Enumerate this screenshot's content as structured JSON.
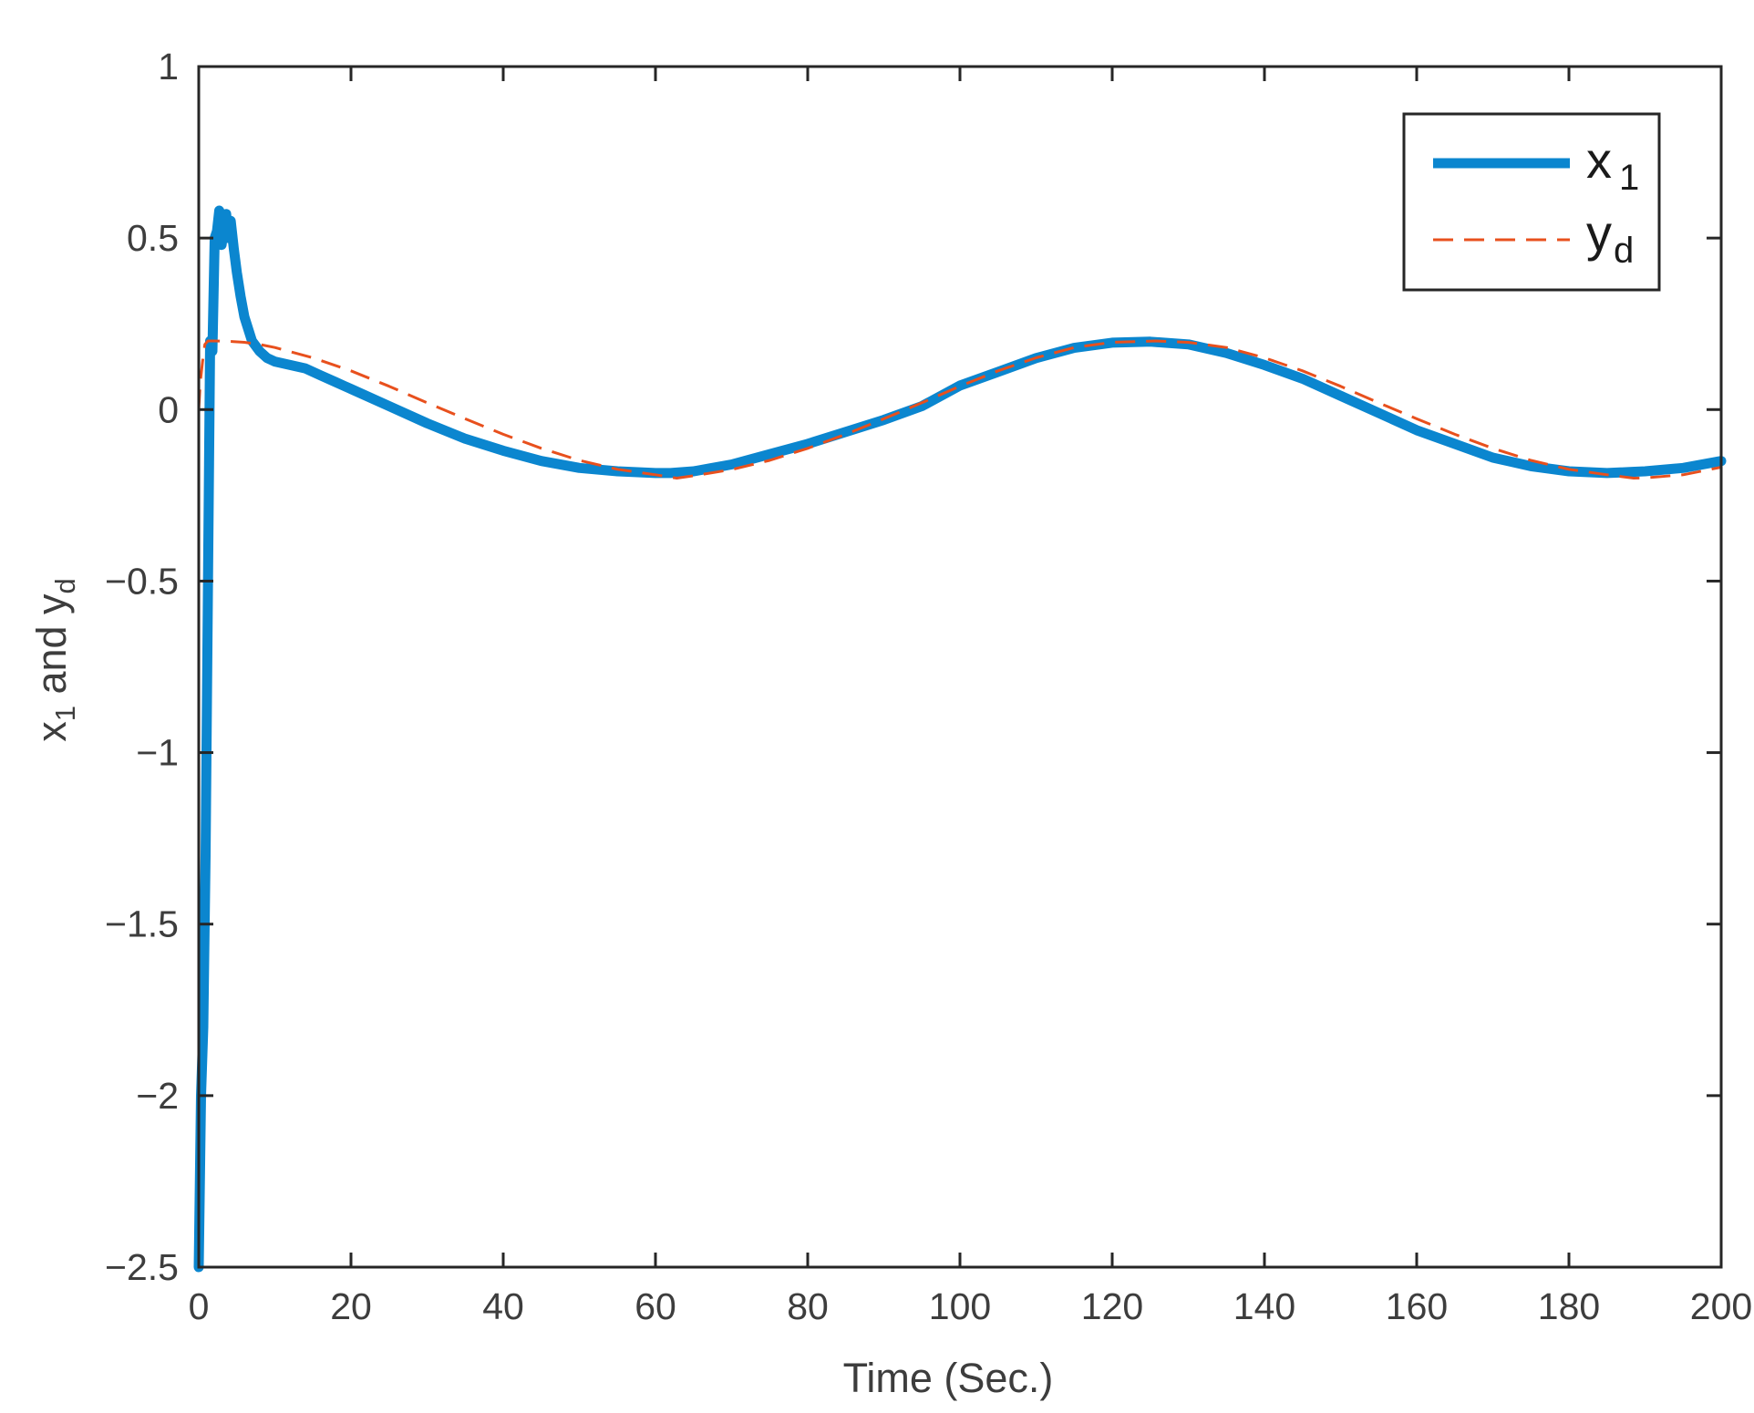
{
  "chart_data": {
    "type": "line",
    "title": "",
    "xlabel": "Time (Sec.)",
    "ylabel": {
      "main_1": "x",
      "sub_1": "1",
      "main_2": " and y",
      "sub_2": "d"
    },
    "xlim": [
      0,
      200
    ],
    "ylim": [
      -2.5,
      1
    ],
    "xticks": [
      0,
      20,
      40,
      60,
      80,
      100,
      120,
      140,
      160,
      180,
      200
    ],
    "yticks": [
      -2.5,
      -2,
      -1.5,
      -1,
      -0.5,
      0,
      0.5,
      1
    ],
    "xtick_labels": [
      "0",
      "20",
      "40",
      "60",
      "80",
      "100",
      "120",
      "140",
      "160",
      "180",
      "200"
    ],
    "ytick_labels": [
      "−2.5",
      "−2",
      "−1.5",
      "−1",
      "−0.5",
      "0",
      "0.5",
      "1"
    ],
    "grid": false,
    "box": true,
    "legend_position": "top-right",
    "series": [
      {
        "name": "x",
        "name_sub": "1",
        "color": "#0b86cf",
        "style": "solid",
        "x": [
          0,
          0.3,
          0.6,
          0.9,
          1.2,
          1.5,
          1.8,
          2.1,
          2.4,
          2.7,
          3.0,
          3.3,
          3.6,
          3.9,
          4.2,
          4.6,
          5.0,
          5.5,
          6,
          7,
          8,
          9,
          10,
          12,
          14,
          16,
          18,
          20,
          25,
          30,
          35,
          40,
          45,
          50,
          55,
          60,
          62,
          65,
          70,
          75,
          80,
          85,
          90,
          95,
          100,
          105,
          110,
          115,
          120,
          125,
          130,
          135,
          140,
          145,
          150,
          155,
          160,
          165,
          170,
          175,
          180,
          185,
          188,
          190,
          195,
          200
        ],
        "y": [
          -2.5,
          -2.0,
          -1.8,
          -1.3,
          -0.55,
          0.2,
          0.17,
          0.5,
          0.52,
          0.58,
          0.48,
          0.54,
          0.57,
          0.5,
          0.55,
          0.47,
          0.4,
          0.33,
          0.27,
          0.2,
          0.17,
          0.15,
          0.14,
          0.13,
          0.12,
          0.1,
          0.08,
          0.06,
          0.01,
          -0.04,
          -0.085,
          -0.12,
          -0.15,
          -0.17,
          -0.18,
          -0.185,
          -0.185,
          -0.18,
          -0.16,
          -0.13,
          -0.1,
          -0.065,
          -0.03,
          0.01,
          0.07,
          0.11,
          0.15,
          0.18,
          0.195,
          0.198,
          0.19,
          0.165,
          0.13,
          0.09,
          0.04,
          -0.01,
          -0.06,
          -0.1,
          -0.14,
          -0.165,
          -0.18,
          -0.185,
          -0.182,
          -0.18,
          -0.17,
          -0.15
        ]
      },
      {
        "name": "y",
        "name_sub": "d",
        "color": "#e8501d",
        "style": "dashed",
        "x": [
          0,
          0.2,
          0.5,
          0.8,
          1.2,
          2,
          4,
          6,
          8,
          10,
          15,
          20,
          25,
          30,
          35,
          40,
          45,
          50,
          55,
          60,
          62.8,
          65,
          70,
          75,
          80,
          85,
          90,
          95,
          100,
          105,
          110,
          115,
          120,
          125.7,
          130,
          135,
          140,
          145,
          150,
          155,
          160,
          165,
          170,
          175,
          180,
          185,
          188.5,
          190,
          195,
          200
        ],
        "y": [
          0,
          0.08,
          0.14,
          0.19,
          0.2,
          0.2,
          0.199,
          0.196,
          0.19,
          0.181,
          0.151,
          0.113,
          0.068,
          0.02,
          -0.027,
          -0.072,
          -0.113,
          -0.148,
          -0.174,
          -0.19,
          -0.2,
          -0.193,
          -0.175,
          -0.148,
          -0.113,
          -0.072,
          -0.027,
          0.02,
          0.068,
          0.113,
          0.151,
          0.181,
          0.196,
          0.2,
          0.196,
          0.181,
          0.151,
          0.113,
          0.068,
          0.02,
          -0.027,
          -0.072,
          -0.113,
          -0.148,
          -0.174,
          -0.19,
          -0.2,
          -0.199,
          -0.19,
          -0.168
        ]
      }
    ]
  }
}
